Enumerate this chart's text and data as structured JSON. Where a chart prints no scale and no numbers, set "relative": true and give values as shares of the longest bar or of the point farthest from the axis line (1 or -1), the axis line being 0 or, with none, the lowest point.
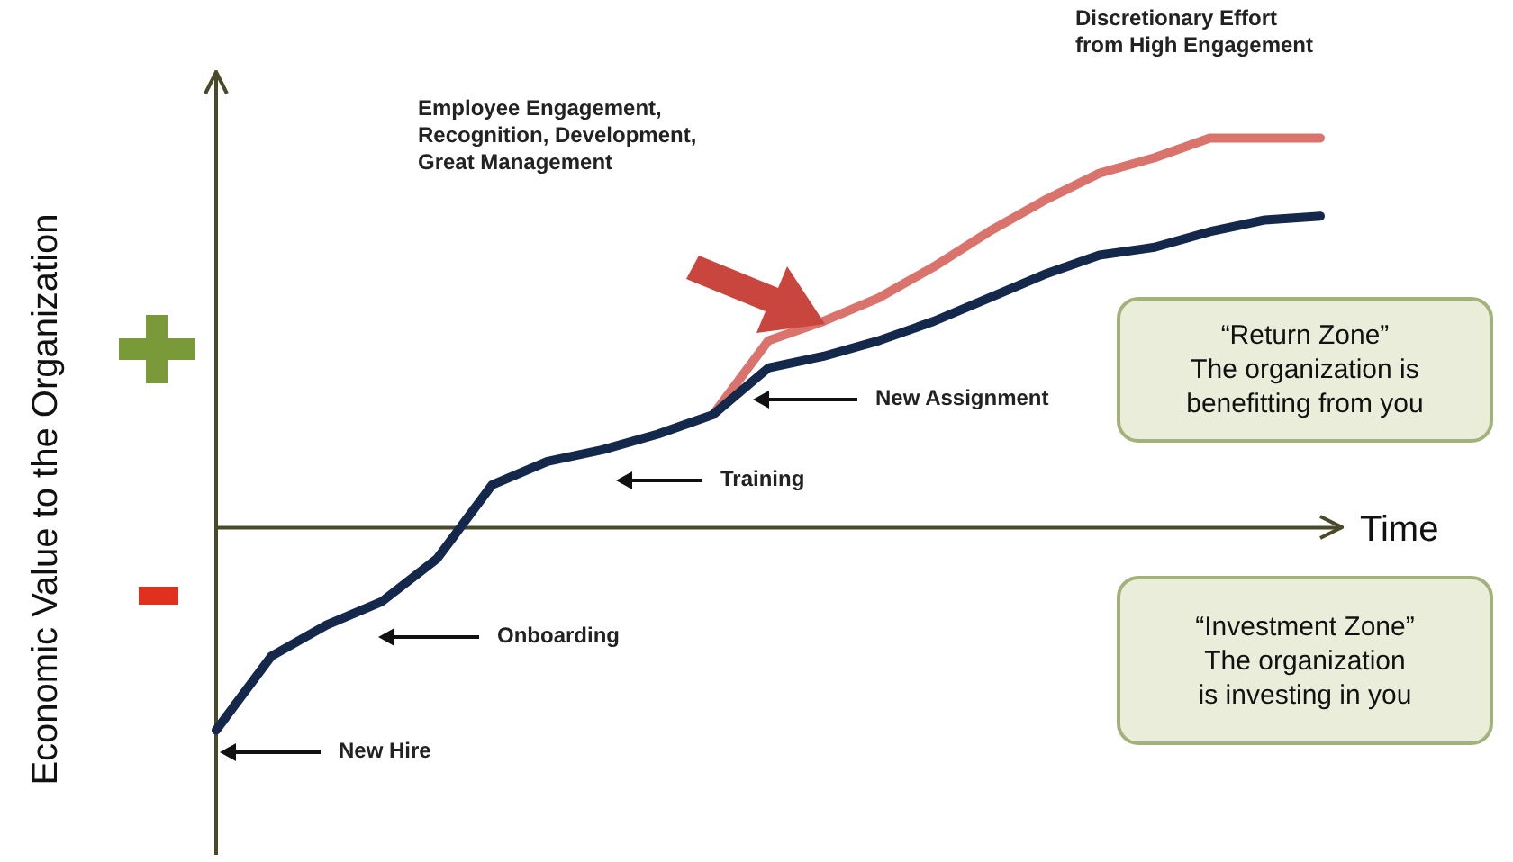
{
  "chart_data": {
    "type": "line",
    "relative": true,
    "marker": "none",
    "line_style": "solid",
    "xlabel": "Time",
    "ylabel": "Economic Value to the Organization",
    "categories": [
      null,
      null,
      null,
      null,
      null,
      null,
      null,
      null,
      null,
      null,
      null,
      null,
      null,
      null,
      null,
      null,
      null,
      null,
      null,
      null,
      null
    ],
    "series": [
      {
        "color": "#14284b",
        "values": [
          -0.52,
          -0.33,
          -0.25,
          -0.19,
          -0.08,
          0.11,
          0.17,
          0.2,
          0.24,
          0.29,
          0.41,
          0.44,
          0.48,
          0.53,
          0.59,
          0.65,
          0.7,
          0.72,
          0.76,
          0.79,
          0.8
        ]
      },
      {
        "color": "#d9736b",
        "values": [
          null,
          null,
          null,
          null,
          null,
          null,
          null,
          null,
          null,
          0.29,
          0.48,
          0.53,
          0.59,
          0.67,
          0.76,
          0.84,
          0.91,
          0.95,
          1,
          1,
          1
        ]
      }
    ],
    "annotations": [
      "Employee Engagement,\nRecognition, Development,\nGreat Management",
      "Discretionary Effort\nfrom High Engagement",
      "New Hire",
      "Onboarding",
      "Training",
      "New Assignment",
      "“Return Zone”\nThe organization is\nbenefitting from you",
      "“Investment Zone”\nThe organization\nis investing in you"
    ]
  }
}
